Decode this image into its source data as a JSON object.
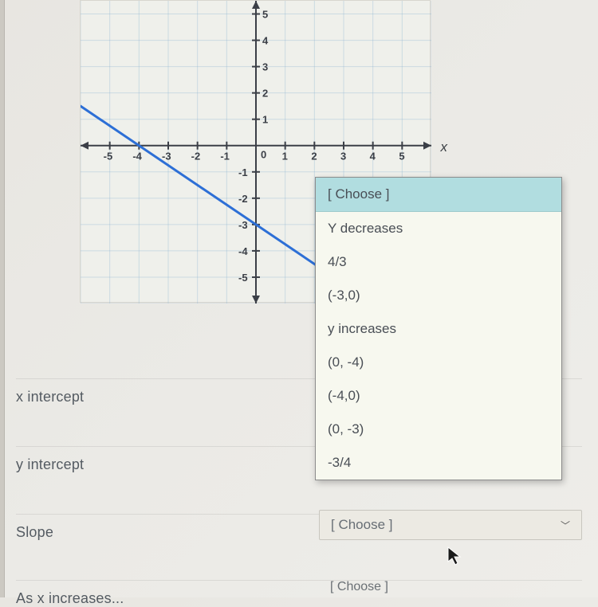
{
  "chart": {
    "type": "line",
    "background_color": "#eff0eb",
    "grid_color": "#8ab3d1",
    "grid_opacity": 0.35,
    "axis_color": "#3b3f47",
    "axis_width": 2,
    "tick_fontsize": 13,
    "xlim": [
      -6,
      6
    ],
    "ylim": [
      -6,
      5.5
    ],
    "xticks": [
      -5,
      -4,
      -3,
      -2,
      -1,
      0,
      1,
      2,
      3,
      4,
      5
    ],
    "yticks": [
      -5,
      -4,
      -3,
      -2,
      -1,
      1,
      2,
      3,
      4,
      5
    ],
    "x_axis_label": "x",
    "line_color": "#2d6fd6",
    "line_width": 3,
    "line_points": {
      "x1": -6,
      "y1": 1.5,
      "x2": 4,
      "y2": -6
    }
  },
  "questions": {
    "xint": "x intercept",
    "yint": "y intercept",
    "slope": "Slope",
    "asx": "As x increases..."
  },
  "dropdown": {
    "prompt": "[ Choose ]",
    "options": [
      "Y decreases",
      "4/3",
      "(-3,0)",
      "y increases",
      "(0, -4)",
      "(-4,0)",
      "(0, -3)",
      "-3/4"
    ]
  },
  "collapsed_label": "[ Choose ]",
  "collapsed_label2": "[ Choose ]"
}
